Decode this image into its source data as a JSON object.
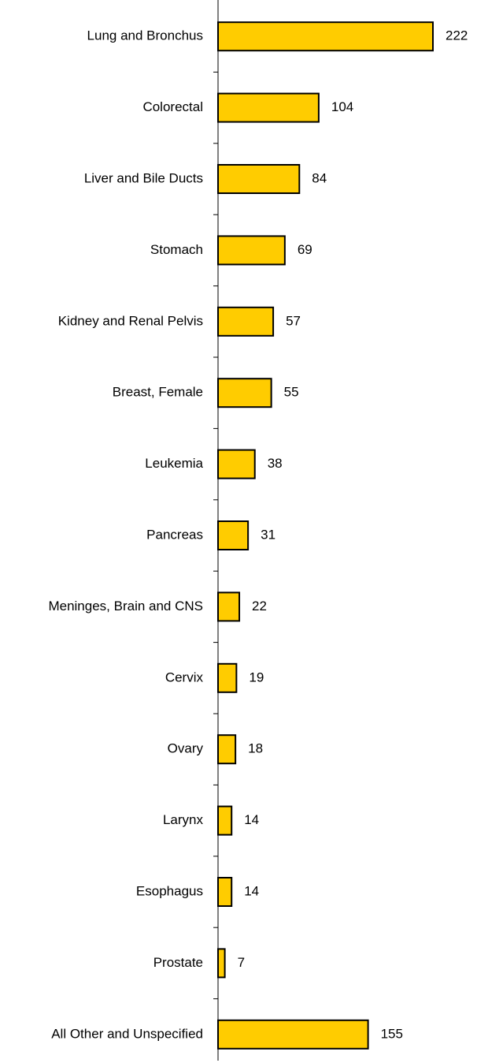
{
  "chart_data": {
    "type": "bar",
    "orientation": "horizontal",
    "categories": [
      "Lung and Bronchus",
      "Colorectal",
      "Liver and Bile Ducts",
      "Stomach",
      "Kidney and Renal Pelvis",
      "Breast, Female",
      "Leukemia",
      "Pancreas",
      "Meninges, Brain and CNS",
      "Cervix",
      "Ovary",
      "Larynx",
      "Esophagus",
      "Prostate",
      "All Other and Unspecified"
    ],
    "values": [
      222,
      104,
      84,
      69,
      57,
      55,
      38,
      31,
      22,
      19,
      18,
      14,
      14,
      7,
      155
    ],
    "color": "#ffcc00"
  }
}
